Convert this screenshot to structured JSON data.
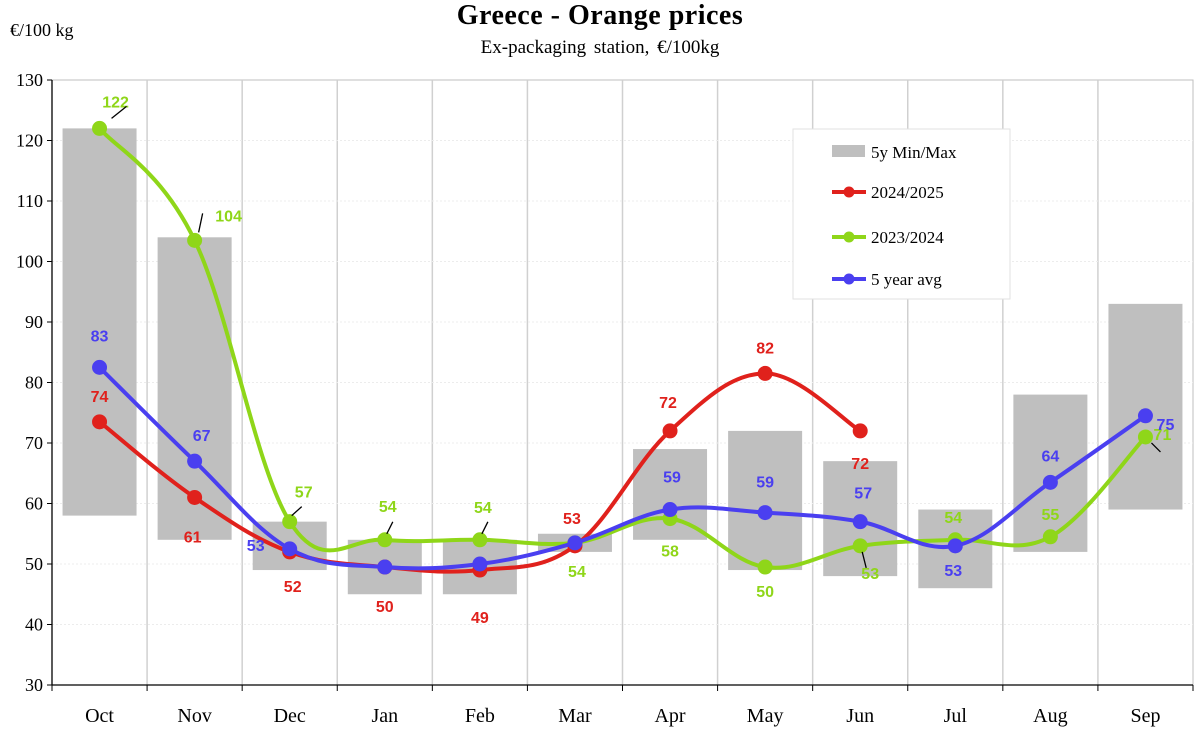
{
  "chart_data": {
    "type": "line",
    "title": "Greece  -  Orange  prices",
    "subtitle": "Ex-packaging  station,  €/100kg",
    "ylabel": "€/100 kg",
    "ylim": [
      30,
      130
    ],
    "yticks": [
      30,
      40,
      50,
      60,
      70,
      80,
      90,
      100,
      110,
      120,
      130
    ],
    "categories": [
      "Oct",
      "Nov",
      "Dec",
      "Jan",
      "Feb",
      "Mar",
      "Apr",
      "May",
      "Jun",
      "Jul",
      "Aug",
      "Sep"
    ],
    "grid": "vertical",
    "legend_position": "top-right",
    "range_band": {
      "name": "5y Min/Max",
      "color": "#bfbfbf",
      "min": [
        58,
        54,
        49,
        45,
        45,
        52,
        54,
        49,
        48,
        46,
        52,
        59
      ],
      "max": [
        122,
        104,
        57,
        54,
        54,
        55,
        69,
        72,
        67,
        59,
        78,
        93
      ]
    },
    "series": [
      {
        "name": "2024/2025",
        "color": "#e0211c",
        "values": [
          73.5,
          61,
          52,
          49.5,
          49,
          53,
          72,
          81.5,
          72,
          null,
          null,
          null
        ],
        "labels": [
          "74",
          "61",
          "52",
          "50",
          "49",
          "53",
          "72",
          "82",
          "72",
          null,
          null,
          null
        ]
      },
      {
        "name": "2023/2024",
        "color": "#8fd619",
        "values": [
          122,
          103.5,
          57,
          54,
          54,
          53.5,
          57.5,
          49.5,
          53,
          54,
          54.5,
          71
        ],
        "labels": [
          "122",
          "104",
          "57",
          "54",
          "54",
          "54",
          "58",
          "50",
          "53",
          "54",
          "55",
          "71"
        ]
      },
      {
        "name": "5 year avg",
        "color": "#4a3ff0",
        "values": [
          82.5,
          67,
          52.5,
          49.5,
          50,
          53.5,
          59,
          58.5,
          57,
          53,
          63.5,
          74.5
        ],
        "labels": [
          "83",
          "67",
          "53",
          null,
          null,
          null,
          "59",
          "59",
          "57",
          "53",
          "64",
          "75"
        ]
      }
    ]
  }
}
